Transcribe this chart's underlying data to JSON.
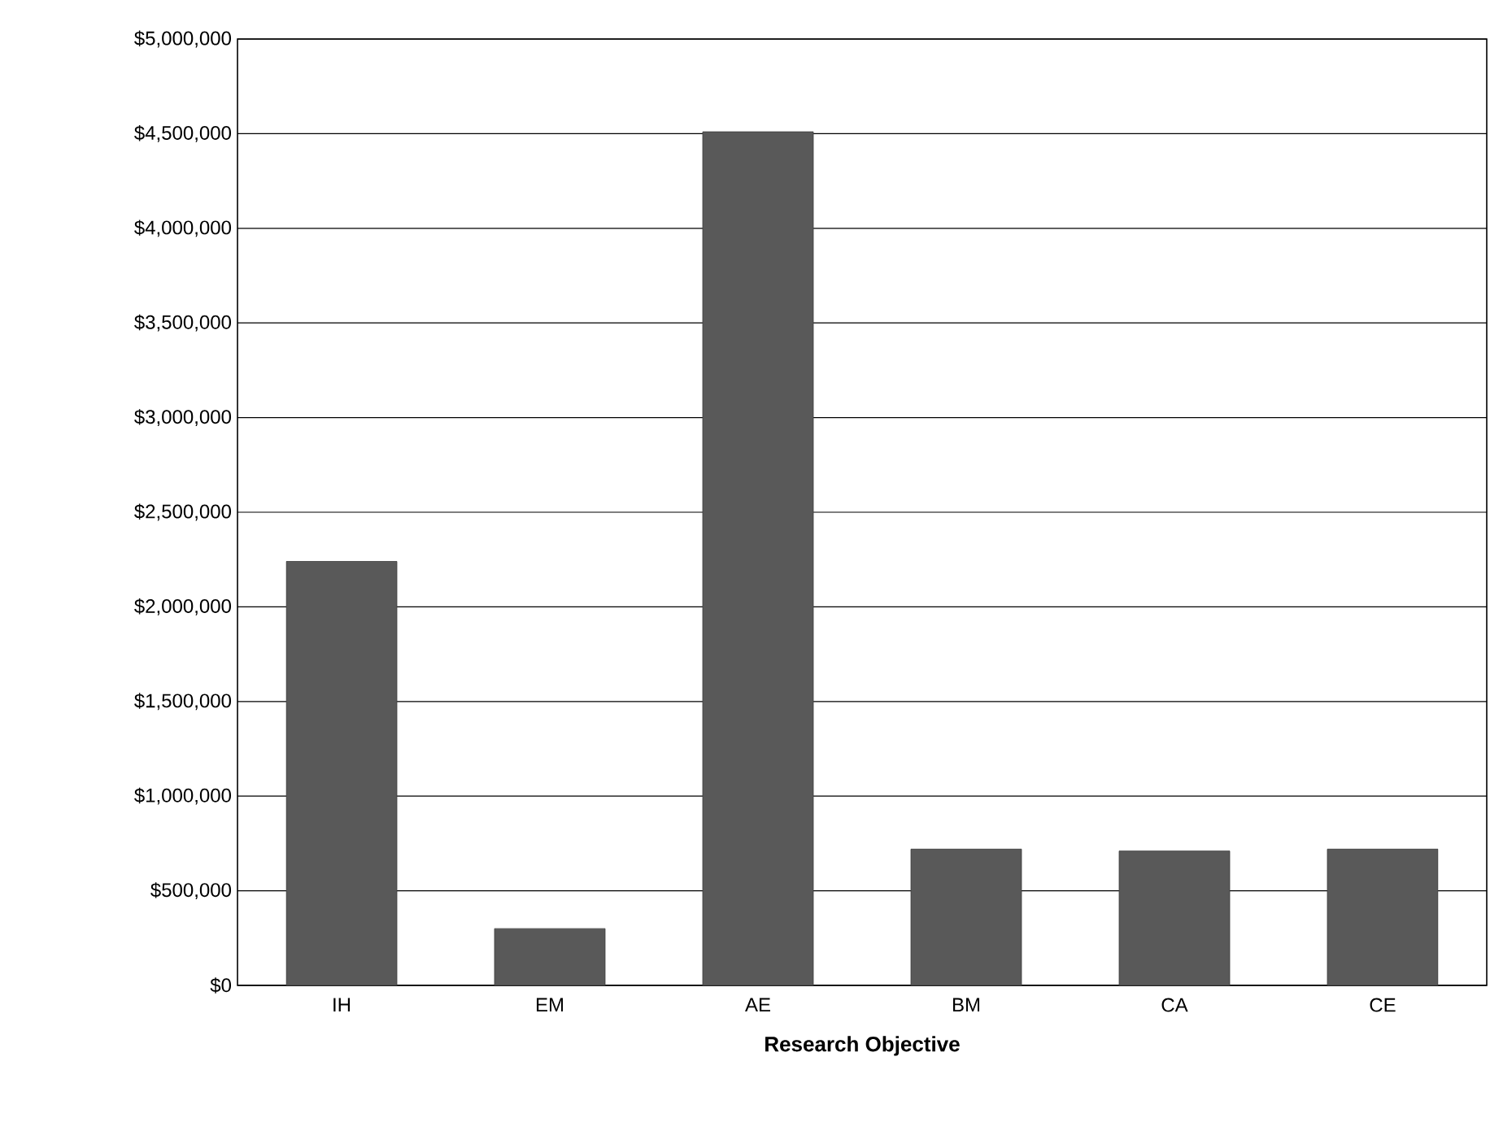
{
  "chart_data": {
    "type": "bar",
    "xlabel": "Research Objective",
    "categories": [
      "IH",
      "EM",
      "AE",
      "BM",
      "CA",
      "CE"
    ],
    "values": [
      2240000,
      300000,
      4510000,
      720000,
      710000,
      720000
    ],
    "color": "#595959",
    "ylim": [
      0,
      5000000
    ],
    "yticks": [
      {
        "value": 0,
        "label": "$0"
      },
      {
        "value": 500000,
        "label": "$500,000"
      },
      {
        "value": 1000000,
        "label": "$1,000,000"
      },
      {
        "value": 1500000,
        "label": "$1,500,000"
      },
      {
        "value": 2000000,
        "label": "$2,000,000"
      },
      {
        "value": 2500000,
        "label": "$2,500,000"
      },
      {
        "value": 3000000,
        "label": "$3,000,000"
      },
      {
        "value": 3500000,
        "label": "$3,500,000"
      },
      {
        "value": 4000000,
        "label": "$4,000,000"
      },
      {
        "value": 4500000,
        "label": "$4,500,000"
      },
      {
        "value": 5000000,
        "label": "$5,000,000"
      }
    ],
    "grid": "y"
  }
}
